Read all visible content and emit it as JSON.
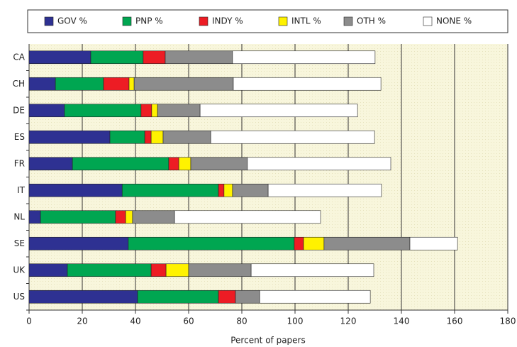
{
  "chart_data": {
    "type": "stacked-barh",
    "xlabel": "Percent of papers",
    "categories": [
      "CA",
      "CH",
      "DE",
      "ES",
      "FR",
      "IT",
      "NL",
      "SE",
      "UK",
      "US"
    ],
    "series": [
      {
        "name": "GOV %",
        "color": "#2e3192",
        "values": [
          23.2,
          9.9,
          13.3,
          30.4,
          16.3,
          35,
          4.3,
          37.3,
          14.4,
          40.8
        ]
      },
      {
        "name": "PNP %",
        "color": "#00a651",
        "values": [
          19.7,
          18.1,
          28.8,
          13.1,
          36.2,
          36.2,
          28.2,
          62.4,
          31.5,
          30.4
        ]
      },
      {
        "name": "INDY %",
        "color": "#ed1c24",
        "values": [
          8.3,
          9.6,
          4,
          2.4,
          3.8,
          2.1,
          3.8,
          3.5,
          5.6,
          6.4
        ]
      },
      {
        "name": "INTL %",
        "color": "#fff200",
        "values": [
          0,
          1.9,
          2.2,
          4.5,
          4.5,
          3.2,
          2.6,
          7.7,
          8.5,
          0
        ]
      },
      {
        "name": "OTH %",
        "color": "#8c8c8c",
        "values": [
          25.3,
          37.3,
          16,
          17.9,
          21.3,
          13.4,
          15.8,
          32.3,
          23.5,
          9.1
        ]
      },
      {
        "name": "NONE %",
        "color": "#ffffff",
        "values": [
          53.6,
          55.5,
          59.2,
          61.6,
          53.9,
          42.6,
          54.9,
          17.9,
          46.1,
          41.6
        ]
      }
    ],
    "xlim": [
      0,
      180
    ],
    "xticks": [
      0,
      20,
      40,
      60,
      80,
      100,
      120,
      140,
      160,
      180
    ],
    "grid": true
  }
}
